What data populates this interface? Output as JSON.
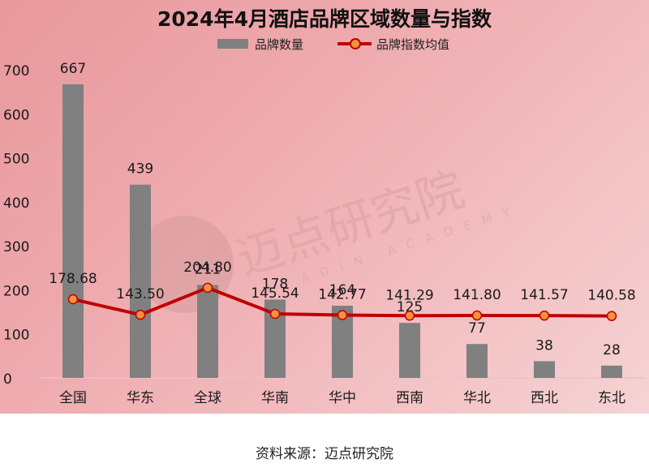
{
  "chart": {
    "title": "2024年4月酒店品牌区域数量与指数",
    "legend": {
      "bar_label": "品牌数量",
      "line_label": "品牌指数均值"
    },
    "watermark": {
      "cn": "迈点研究院",
      "en": "MEADIN ACADEMY"
    },
    "colors": {
      "bar": "#808080",
      "line": "#c00000",
      "marker_fill": "#f5913c",
      "background_start": "#e8989c",
      "background_end": "#f6d3d4"
    }
  },
  "chart_data": {
    "type": "bar+line",
    "title": "2024年4月酒店品牌区域数量与指数",
    "categories": [
      "全国",
      "华东",
      "全球",
      "华南",
      "华中",
      "西南",
      "华北",
      "西北",
      "东北"
    ],
    "series": [
      {
        "name": "品牌数量",
        "type": "bar",
        "values": [
          667,
          439,
          211,
          178,
          164,
          125,
          77,
          38,
          28
        ]
      },
      {
        "name": "品牌指数均值",
        "type": "line",
        "values": [
          178.68,
          143.5,
          204.8,
          145.54,
          142.77,
          141.29,
          141.8,
          141.57,
          140.58
        ]
      }
    ],
    "bar_labels": [
      "667",
      "439",
      "211",
      "178",
      "164",
      "125",
      "77",
      "38",
      "28"
    ],
    "line_labels": [
      "178.68",
      "143.50",
      "204.80",
      "145.54",
      "142.77",
      "141.29",
      "141.80",
      "141.57",
      "140.58"
    ],
    "xlabel": "",
    "ylabel": "",
    "yticks": [
      "0",
      "100",
      "200",
      "300",
      "400",
      "500",
      "600",
      "700"
    ],
    "ylim": [
      0,
      700
    ],
    "grid": false,
    "legend_position": "top"
  },
  "footer": {
    "source": "资料来源：迈点研究院"
  }
}
